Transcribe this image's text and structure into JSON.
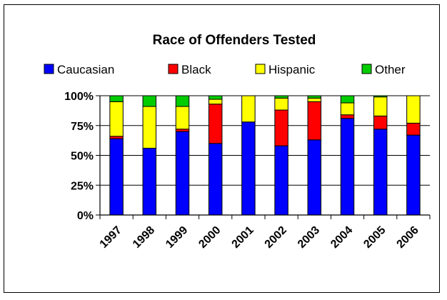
{
  "chart_data": {
    "type": "bar",
    "stacked": true,
    "percent_stacked": true,
    "title": "Race of Offenders Tested",
    "xlabel": "",
    "ylabel": "",
    "categories": [
      "1997",
      "1998",
      "1999",
      "2000",
      "2001",
      "2002",
      "2003",
      "2004",
      "2005",
      "2006"
    ],
    "series": [
      {
        "name": "Caucasian",
        "color": "#0000FF",
        "values": [
          64,
          56,
          70,
          60,
          78,
          58,
          63,
          81,
          72,
          67
        ]
      },
      {
        "name": "Black",
        "color": "#FF0000",
        "values": [
          2,
          0,
          2,
          33,
          0,
          30,
          32,
          3,
          11,
          10
        ]
      },
      {
        "name": "Hispanic",
        "color": "#FFFF00",
        "values": [
          29,
          35,
          19,
          4,
          22,
          10,
          3,
          10,
          16,
          23
        ]
      },
      {
        "name": "Other",
        "color": "#00CC00",
        "values": [
          5,
          9,
          9,
          3,
          0,
          2,
          2,
          6,
          1,
          0
        ]
      }
    ],
    "ylim": [
      0,
      100
    ],
    "y_ticks": [
      "0%",
      "25%",
      "50%",
      "75%",
      "100%"
    ],
    "grid": true,
    "legend_position": "top"
  }
}
